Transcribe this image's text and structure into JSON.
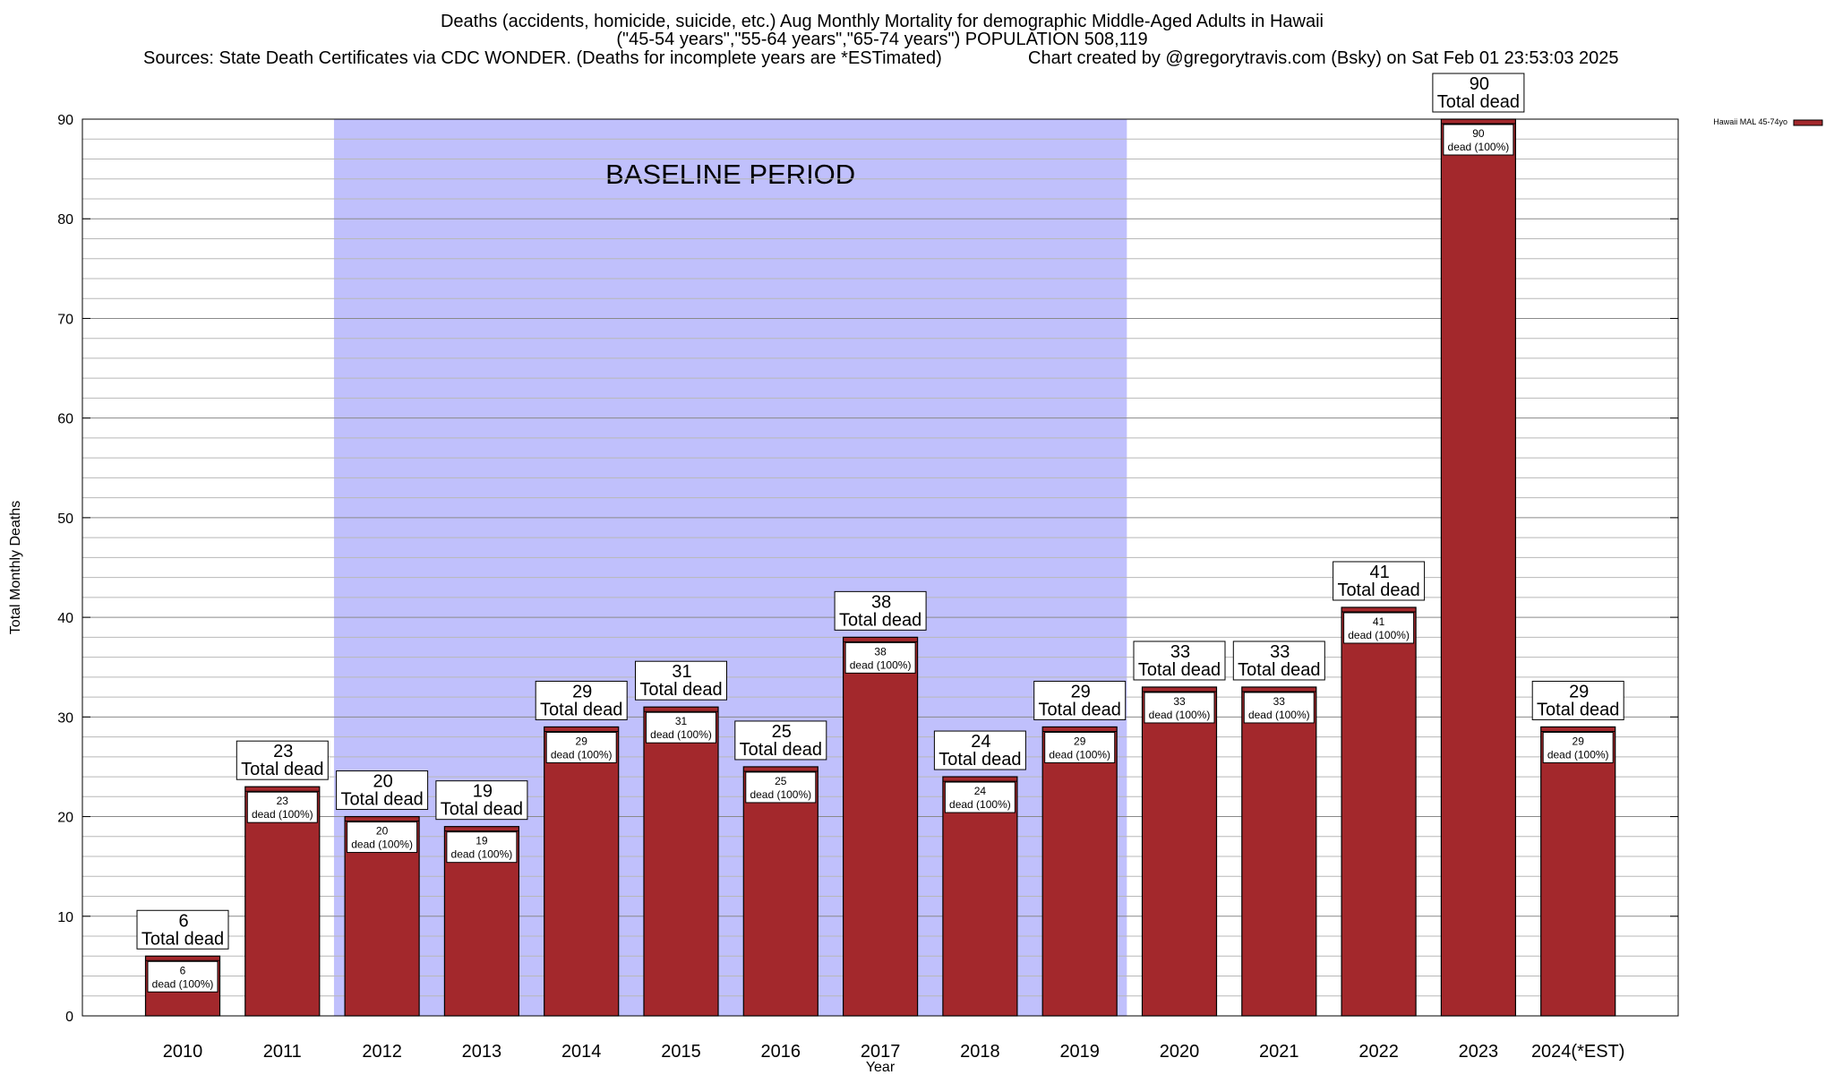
{
  "header": {
    "title_line1": "Deaths (accidents, homicide, suicide, etc.) Aug Monthly Mortality for demographic Middle-Aged Adults in Hawaii",
    "title_line2": "(\"45-54 years\",\"55-64 years\",\"65-74 years\") POPULATION 508,119",
    "sources": "Sources: State Death Certificates via CDC WONDER. (Deaths for incomplete years are *ESTimated)",
    "credit": "Chart created by @gregorytravis.com (Bsky) on Sat Feb 01 23:53:03 2025"
  },
  "chart_data": {
    "type": "bar",
    "xlabel": "Year",
    "ylabel": "Total Monthly Deaths",
    "ylim": [
      0,
      90
    ],
    "yticks": [
      0,
      10,
      20,
      30,
      40,
      50,
      60,
      70,
      80,
      90
    ],
    "grid": "horizontal",
    "legend": {
      "placement": "top-right",
      "label": "Hawaii MAL 45-74yo"
    },
    "categories": [
      "2010",
      "2011",
      "2012",
      "2013",
      "2014",
      "2015",
      "2016",
      "2017",
      "2018",
      "2019",
      "2020",
      "2021",
      "2022",
      "2023",
      "2024(*EST)"
    ],
    "series": [
      {
        "name": "Hawaii MAL 45-74yo",
        "color": "#a3282c",
        "values": [
          6,
          23,
          20,
          19,
          29,
          31,
          25,
          38,
          24,
          29,
          33,
          33,
          41,
          90,
          29
        ]
      }
    ],
    "total_label": "Total dead",
    "inner_label": "dead (100%)",
    "baseline": {
      "label": "BASELINE PERIOD",
      "from": "2012",
      "to": "2019",
      "color": "#c0c0fc"
    }
  }
}
